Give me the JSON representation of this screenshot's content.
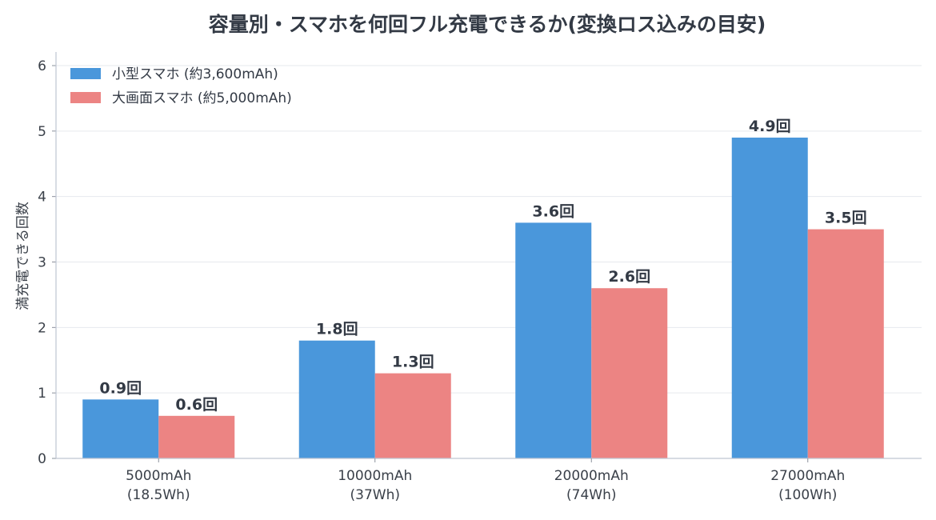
{
  "chart_data": {
    "type": "bar",
    "title": "容量別・スマホを何回フル充電できるか(変換ロス込みの目安)",
    "xlabel": "",
    "ylabel": "満充電できる回数",
    "ylim": [
      0,
      6
    ],
    "yticks": [
      0,
      1,
      2,
      3,
      4,
      5,
      6
    ],
    "grid": true,
    "legend_position": "top-left",
    "categories": [
      [
        "5000mAh",
        "(18.5Wh)"
      ],
      [
        "10000mAh",
        "(37Wh)"
      ],
      [
        "20000mAh",
        "(74Wh)"
      ],
      [
        "27000mAh",
        "(100Wh)"
      ]
    ],
    "series": [
      {
        "name": "小型スマホ (約3,600mAh)",
        "color": "#4a97db",
        "values": [
          0.9,
          1.8,
          3.6,
          4.9
        ],
        "labels": [
          "0.9回",
          "1.8回",
          "3.6回",
          "4.9回"
        ]
      },
      {
        "name": "大画面スマホ (約5,000mAh)",
        "color": "#ec8483",
        "values": [
          0.65,
          1.3,
          2.6,
          3.5
        ],
        "labels": [
          "0.6回",
          "1.3回",
          "2.6回",
          "3.5回"
        ]
      }
    ]
  }
}
